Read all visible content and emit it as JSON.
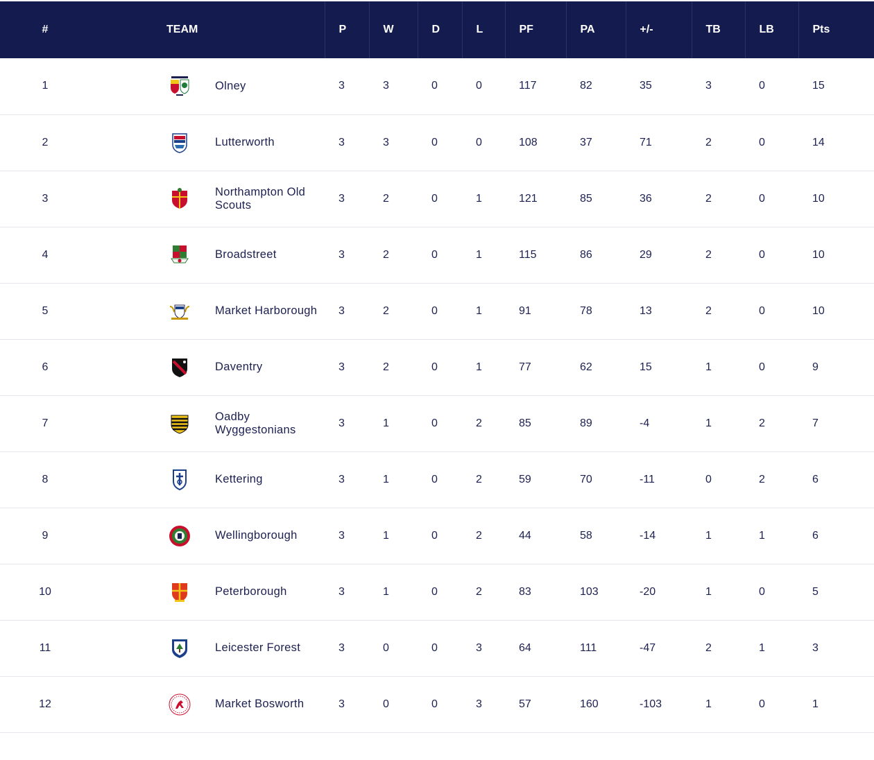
{
  "header": {
    "pos": "#",
    "team": "TEAM",
    "p": "P",
    "w": "W",
    "d": "D",
    "l": "L",
    "pf": "PF",
    "pa": "PA",
    "diff": "+/-",
    "tb": "TB",
    "lb": "LB",
    "pts": "Pts"
  },
  "colors": {
    "header_bg": "#141c4f",
    "text": "#1c2050"
  },
  "rows": [
    {
      "pos": "1",
      "team": "Olney",
      "crest_icon": "olney-crest-icon",
      "p": "3",
      "w": "3",
      "d": "0",
      "l": "0",
      "pf": "117",
      "pa": "82",
      "diff": "35",
      "tb": "3",
      "lb": "0",
      "pts": "15"
    },
    {
      "pos": "2",
      "team": "Lutterworth",
      "crest_icon": "lutterworth-crest-icon",
      "p": "3",
      "w": "3",
      "d": "0",
      "l": "0",
      "pf": "108",
      "pa": "37",
      "diff": "71",
      "tb": "2",
      "lb": "0",
      "pts": "14"
    },
    {
      "pos": "3",
      "team": "Northampton Old Scouts",
      "crest_icon": "northampton-old-scouts-crest-icon",
      "p": "3",
      "w": "2",
      "d": "0",
      "l": "1",
      "pf": "121",
      "pa": "85",
      "diff": "36",
      "tb": "2",
      "lb": "0",
      "pts": "10"
    },
    {
      "pos": "4",
      "team": "Broadstreet",
      "crest_icon": "broadstreet-crest-icon",
      "p": "3",
      "w": "2",
      "d": "0",
      "l": "1",
      "pf": "115",
      "pa": "86",
      "diff": "29",
      "tb": "2",
      "lb": "0",
      "pts": "10"
    },
    {
      "pos": "5",
      "team": "Market Harborough",
      "crest_icon": "market-harborough-crest-icon",
      "p": "3",
      "w": "2",
      "d": "0",
      "l": "1",
      "pf": "91",
      "pa": "78",
      "diff": "13",
      "tb": "2",
      "lb": "0",
      "pts": "10"
    },
    {
      "pos": "6",
      "team": "Daventry",
      "crest_icon": "daventry-crest-icon",
      "p": "3",
      "w": "2",
      "d": "0",
      "l": "1",
      "pf": "77",
      "pa": "62",
      "diff": "15",
      "tb": "1",
      "lb": "0",
      "pts": "9"
    },
    {
      "pos": "7",
      "team": "Oadby Wyggestonians",
      "crest_icon": "oadby-wyggestonians-crest-icon",
      "p": "3",
      "w": "1",
      "d": "0",
      "l": "2",
      "pf": "85",
      "pa": "89",
      "diff": "-4",
      "tb": "1",
      "lb": "2",
      "pts": "7"
    },
    {
      "pos": "8",
      "team": "Kettering",
      "crest_icon": "kettering-crest-icon",
      "p": "3",
      "w": "1",
      "d": "0",
      "l": "2",
      "pf": "59",
      "pa": "70",
      "diff": "-11",
      "tb": "0",
      "lb": "2",
      "pts": "6"
    },
    {
      "pos": "9",
      "team": "Wellingborough",
      "crest_icon": "wellingborough-crest-icon",
      "p": "3",
      "w": "1",
      "d": "0",
      "l": "2",
      "pf": "44",
      "pa": "58",
      "diff": "-14",
      "tb": "1",
      "lb": "1",
      "pts": "6"
    },
    {
      "pos": "10",
      "team": "Peterborough",
      "crest_icon": "peterborough-crest-icon",
      "p": "3",
      "w": "1",
      "d": "0",
      "l": "2",
      "pf": "83",
      "pa": "103",
      "diff": "-20",
      "tb": "1",
      "lb": "0",
      "pts": "5"
    },
    {
      "pos": "11",
      "team": "Leicester Forest",
      "crest_icon": "leicester-forest-crest-icon",
      "p": "3",
      "w": "0",
      "d": "0",
      "l": "3",
      "pf": "64",
      "pa": "111",
      "diff": "-47",
      "tb": "2",
      "lb": "1",
      "pts": "3"
    },
    {
      "pos": "12",
      "team": "Market Bosworth",
      "crest_icon": "market-bosworth-crest-icon",
      "p": "3",
      "w": "0",
      "d": "0",
      "l": "3",
      "pf": "57",
      "pa": "160",
      "diff": "-103",
      "tb": "1",
      "lb": "0",
      "pts": "1"
    }
  ]
}
